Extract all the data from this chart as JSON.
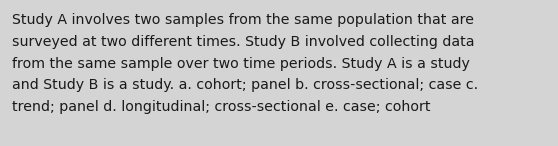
{
  "lines": [
    "Study A involves two samples from the same population that are",
    "surveyed at two different times. Study B involved collecting data",
    "from the same sample over two time periods. Study A is a study",
    "and Study B is a study. a. cohort; panel b. cross-sectional; case c.",
    "trend; panel d. longitudinal; cross-sectional e. case; cohort"
  ],
  "background_color": "#d4d4d4",
  "text_color": "#1a1a1a",
  "font_size": 10.2,
  "fig_width": 5.58,
  "fig_height": 1.46,
  "dpi": 100
}
